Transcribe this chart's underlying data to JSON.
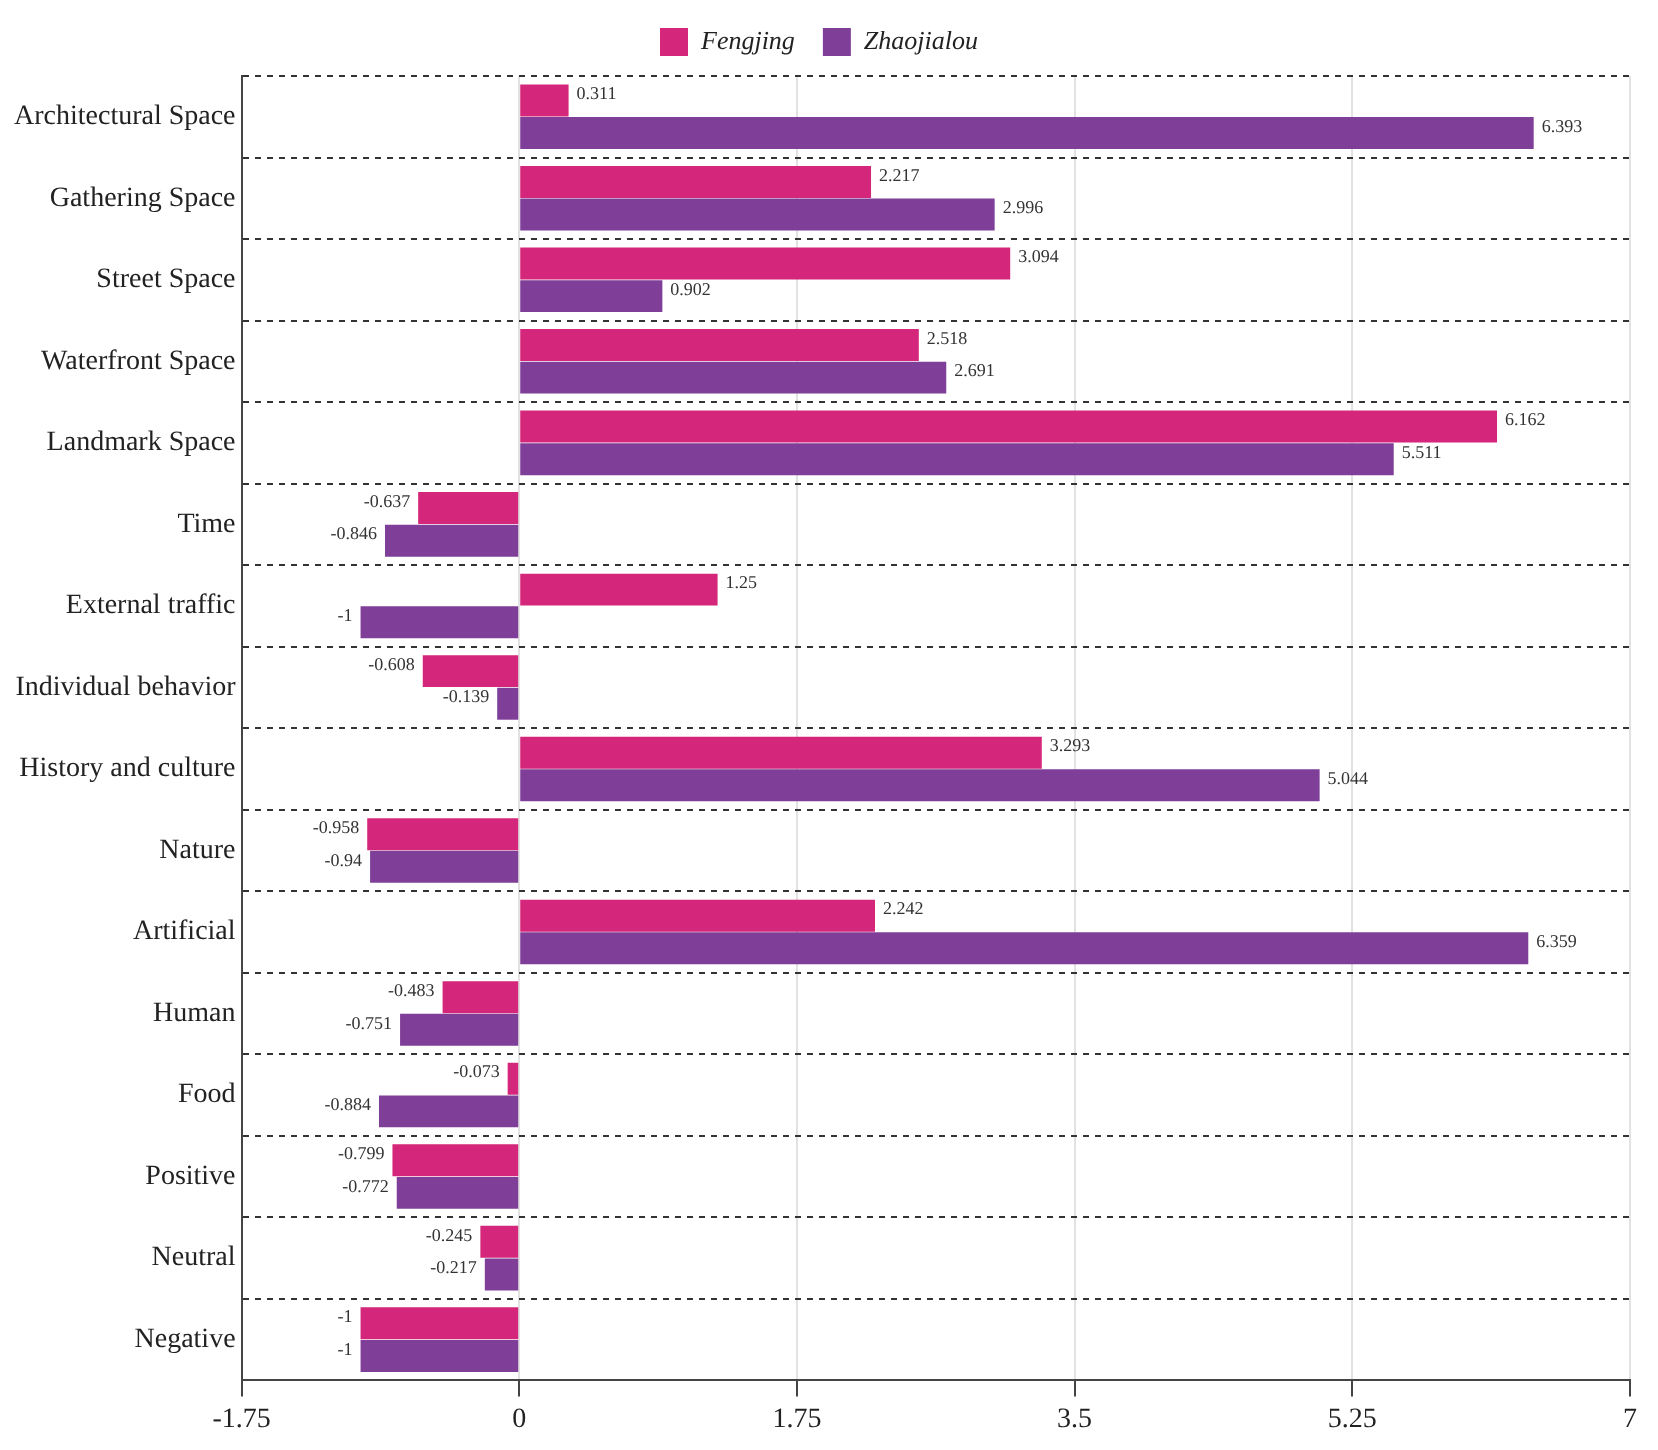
{
  "chart_data": {
    "type": "bar",
    "orientation": "horizontal",
    "categories": [
      "Architectural Space",
      "Gathering Space",
      "Street Space",
      "Waterfront Space",
      "Landmark Space",
      "Time",
      "External traffic",
      "Individual behavior",
      "History and culture",
      "Nature",
      "Artificial",
      "Human",
      "Food",
      "Positive",
      "Neutral",
      "Negative"
    ],
    "series": [
      {
        "name": "Fengjing",
        "color": "#d4267a",
        "values": [
          0.311,
          2.217,
          3.094,
          2.518,
          6.162,
          -0.637,
          1.25,
          -0.608,
          3.293,
          -0.958,
          2.242,
          -0.483,
          -0.073,
          -0.799,
          -0.245,
          -1
        ]
      },
      {
        "name": "Zhaojialou",
        "color": "#7f3f98",
        "values": [
          6.393,
          2.996,
          0.902,
          2.691,
          5.511,
          -0.846,
          -1,
          -0.139,
          5.044,
          -0.94,
          6.359,
          -0.751,
          -0.884,
          -0.772,
          -0.217,
          -1
        ]
      }
    ],
    "xlim": [
      -1.75,
      7
    ],
    "xticks": [
      -1.75,
      0,
      1.75,
      3.5,
      5.25,
      7
    ],
    "grid": true,
    "legend": "top",
    "data_labels": true
  }
}
